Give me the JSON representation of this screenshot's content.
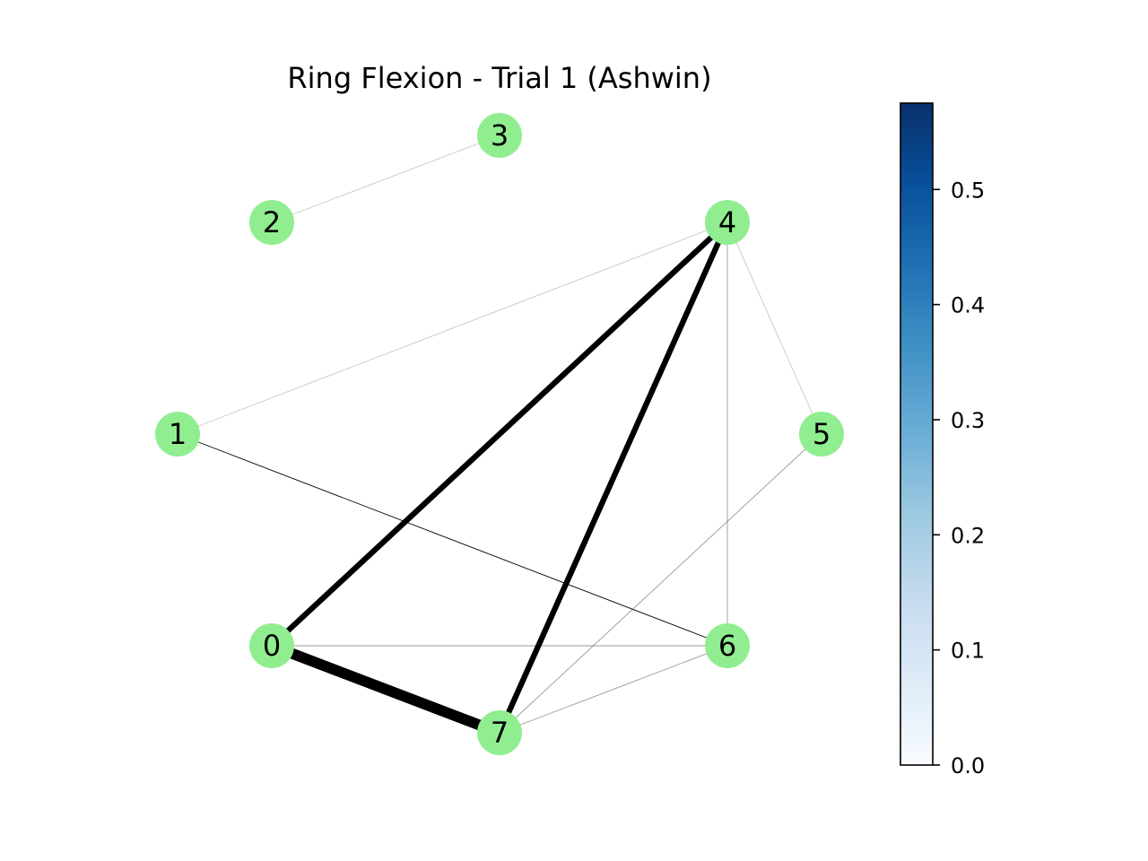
{
  "title": "Ring Flexion - Trial 1 (Ashwin)",
  "node_color": "#90ee90",
  "edge_color": "#000000",
  "nodes": [
    {
      "id": "0",
      "label": "0"
    },
    {
      "id": "1",
      "label": "1"
    },
    {
      "id": "2",
      "label": "2"
    },
    {
      "id": "3",
      "label": "3"
    },
    {
      "id": "4",
      "label": "4"
    },
    {
      "id": "5",
      "label": "5"
    },
    {
      "id": "6",
      "label": "6"
    },
    {
      "id": "7",
      "label": "7"
    }
  ],
  "edges": [
    {
      "source": "0",
      "target": "7",
      "weight": 0.57
    },
    {
      "source": "0",
      "target": "4",
      "weight": 0.3
    },
    {
      "source": "4",
      "target": "7",
      "weight": 0.3
    },
    {
      "source": "1",
      "target": "6",
      "weight": 0.08
    },
    {
      "source": "0",
      "target": "6",
      "weight": 0.03
    },
    {
      "source": "4",
      "target": "6",
      "weight": 0.03
    },
    {
      "source": "5",
      "target": "7",
      "weight": 0.03
    },
    {
      "source": "6",
      "target": "7",
      "weight": 0.03
    },
    {
      "source": "1",
      "target": "4",
      "weight": 0.015
    },
    {
      "source": "4",
      "target": "5",
      "weight": 0.015
    },
    {
      "source": "2",
      "target": "3",
      "weight": 0.015
    }
  ],
  "colorbar": {
    "colormap": "Blues",
    "min": 0.0,
    "max": 0.575,
    "ticks": [
      "0.0",
      "0.1",
      "0.2",
      "0.3",
      "0.4",
      "0.5"
    ],
    "tick_values": [
      0.0,
      0.1,
      0.2,
      0.3,
      0.4,
      0.5
    ],
    "stops": [
      "#f7fbff",
      "#deebf7",
      "#c6dbef",
      "#9ecae1",
      "#6baed6",
      "#4292c6",
      "#2171b5",
      "#08519c",
      "#08306b"
    ]
  }
}
